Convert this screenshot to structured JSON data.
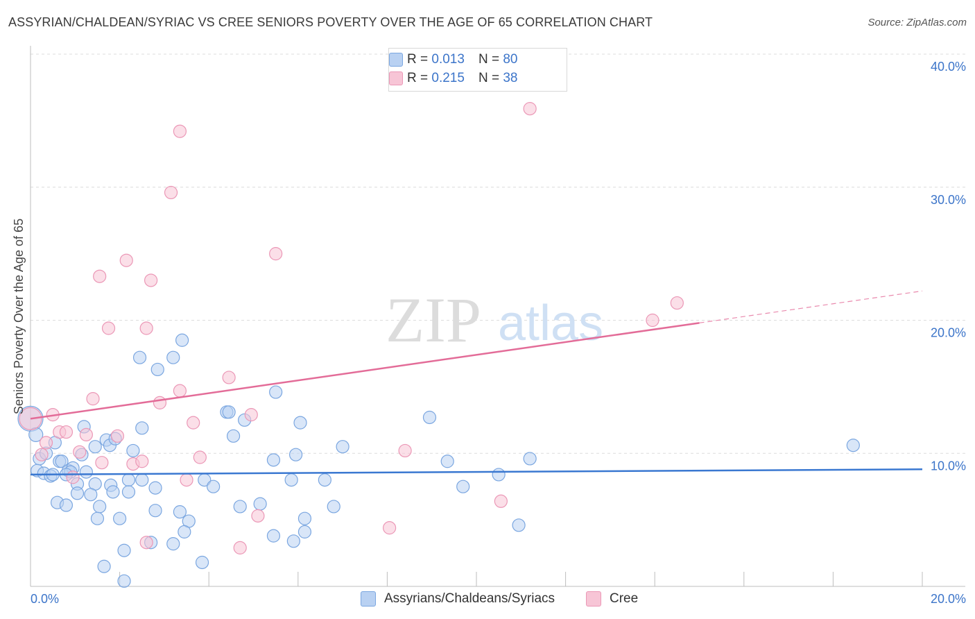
{
  "title": "ASSYRIAN/CHALDEAN/SYRIAC VS CREE SENIORS POVERTY OVER THE AGE OF 65 CORRELATION CHART",
  "source": "Source: ZipAtlas.com",
  "watermark": {
    "zip": "ZIP",
    "atlas": "atlas"
  },
  "colors": {
    "blue": "#3a78d1",
    "blue_fill": "#b9d1f2",
    "blue_stroke": "#7aa6e0",
    "pink": "#e36c98",
    "pink_fill": "#f7c5d6",
    "pink_stroke": "#eb97b6",
    "axis_label": "#3b74c9",
    "grid": "#dcdcdc"
  },
  "legend_top": {
    "rows": [
      {
        "r_label": "R = ",
        "r_value": "0.013",
        "n_label": "N = ",
        "n_value": "80",
        "color": "blue"
      },
      {
        "r_label": "R = ",
        "r_value": "0.215",
        "n_label": "N = ",
        "n_value": "38",
        "color": "pink"
      }
    ]
  },
  "bottom_legend": [
    {
      "label": "Assyrians/Chaldeans/Syriacs",
      "color": "blue"
    },
    {
      "label": "Cree",
      "color": "pink"
    }
  ],
  "chart_data": {
    "type": "scatter",
    "title": "ASSYRIAN/CHALDEAN/SYRIAC VS CREE SENIORS POVERTY OVER THE AGE OF 65 CORRELATION CHART",
    "xlabel": "",
    "ylabel": "Seniors Poverty Over the Age of 65",
    "xlim": [
      0,
      20
    ],
    "ylim": [
      0,
      40
    ],
    "x_tick_labels": [
      "0.0%",
      "20.0%"
    ],
    "y_ticks": [
      10,
      20,
      30,
      40
    ],
    "y_tick_labels": [
      "10.0%",
      "20.0%",
      "30.0%",
      "40.0%"
    ],
    "grid": true,
    "legend_position": "top-center",
    "series": [
      {
        "name": "Assyrians/Chaldeans/Syriacs",
        "color": "blue",
        "trend": {
          "x": [
            0,
            20
          ],
          "y": [
            8.4,
            8.8
          ],
          "dashed_from": null
        },
        "points": [
          [
            0.0,
            12.6,
            18
          ],
          [
            0.12,
            11.4,
            10
          ],
          [
            0.2,
            9.6,
            9
          ],
          [
            0.35,
            10.0,
            9
          ],
          [
            0.55,
            10.8,
            9
          ],
          [
            0.15,
            8.7,
            9
          ],
          [
            0.3,
            8.5,
            9
          ],
          [
            0.45,
            8.3,
            9
          ],
          [
            0.5,
            8.4,
            9
          ],
          [
            0.65,
            9.4,
            9
          ],
          [
            0.7,
            9.4,
            9
          ],
          [
            0.85,
            8.7,
            9
          ],
          [
            0.95,
            8.9,
            9
          ],
          [
            0.9,
            8.6,
            9
          ],
          [
            1.25,
            8.6,
            9
          ],
          [
            1.15,
            9.9,
            9
          ],
          [
            1.2,
            12.0,
            9
          ],
          [
            1.45,
            10.5,
            9
          ],
          [
            1.7,
            11.0,
            9
          ],
          [
            1.78,
            10.6,
            9
          ],
          [
            1.9,
            11.1,
            9
          ],
          [
            2.3,
            10.2,
            9
          ],
          [
            2.5,
            11.9,
            9
          ],
          [
            2.45,
            17.2,
            9
          ],
          [
            2.85,
            16.3,
            9
          ],
          [
            3.2,
            17.2,
            9
          ],
          [
            3.4,
            18.5,
            9
          ],
          [
            1.45,
            7.7,
            9
          ],
          [
            1.05,
            7.7,
            9
          ],
          [
            0.6,
            6.3,
            9
          ],
          [
            0.8,
            6.1,
            9
          ],
          [
            1.05,
            7.0,
            9
          ],
          [
            1.35,
            6.9,
            9
          ],
          [
            1.55,
            6.0,
            9
          ],
          [
            1.8,
            7.6,
            9
          ],
          [
            1.85,
            7.1,
            9
          ],
          [
            2.2,
            8.0,
            9
          ],
          [
            2.2,
            7.1,
            9
          ],
          [
            2.5,
            8.0,
            9
          ],
          [
            2.8,
            7.4,
            9
          ],
          [
            1.5,
            5.1,
            9
          ],
          [
            2.0,
            5.1,
            9
          ],
          [
            2.8,
            5.7,
            9
          ],
          [
            3.35,
            5.6,
            9
          ],
          [
            3.55,
            4.9,
            9
          ],
          [
            3.45,
            4.1,
            9
          ],
          [
            2.7,
            3.3,
            9
          ],
          [
            3.2,
            3.2,
            9
          ],
          [
            2.1,
            2.7,
            9
          ],
          [
            1.65,
            1.5,
            9
          ],
          [
            2.1,
            0.4,
            9
          ],
          [
            3.85,
            1.8,
            9
          ],
          [
            3.9,
            8.0,
            9
          ],
          [
            4.1,
            7.5,
            9
          ],
          [
            4.4,
            13.1,
            9
          ],
          [
            4.45,
            13.1,
            9
          ],
          [
            4.55,
            11.3,
            9
          ],
          [
            4.7,
            6.0,
            9
          ],
          [
            4.8,
            12.5,
            9
          ],
          [
            5.15,
            6.2,
            9
          ],
          [
            5.45,
            9.5,
            9
          ],
          [
            5.5,
            14.6,
            9
          ],
          [
            5.85,
            8.0,
            9
          ],
          [
            5.95,
            9.9,
            9
          ],
          [
            6.05,
            12.3,
            9
          ],
          [
            6.15,
            5.1,
            9
          ],
          [
            6.15,
            4.1,
            9
          ],
          [
            5.45,
            3.8,
            9
          ],
          [
            5.9,
            3.4,
            9
          ],
          [
            6.6,
            8.0,
            9
          ],
          [
            6.8,
            6.0,
            9
          ],
          [
            7.0,
            10.5,
            9
          ],
          [
            8.95,
            12.7,
            9
          ],
          [
            9.35,
            9.4,
            9
          ],
          [
            9.7,
            7.5,
            9
          ],
          [
            10.5,
            8.4,
            9
          ],
          [
            10.95,
            4.6,
            9
          ],
          [
            11.2,
            9.6,
            9
          ],
          [
            18.45,
            10.6,
            9
          ],
          [
            0.8,
            8.4,
            9
          ]
        ]
      },
      {
        "name": "Cree",
        "color": "pink",
        "trend": {
          "x": [
            0,
            20
          ],
          "y": [
            12.6,
            22.2
          ],
          "dashed_from": 15.0
        },
        "points": [
          [
            0.0,
            12.6,
            16
          ],
          [
            0.25,
            9.9,
            9
          ],
          [
            0.35,
            10.8,
            9
          ],
          [
            0.5,
            12.9,
            9
          ],
          [
            0.65,
            11.6,
            9
          ],
          [
            0.8,
            11.6,
            9
          ],
          [
            0.95,
            8.2,
            9
          ],
          [
            1.1,
            10.1,
            9
          ],
          [
            1.25,
            11.4,
            9
          ],
          [
            1.4,
            14.1,
            9
          ],
          [
            1.55,
            23.3,
            9
          ],
          [
            1.6,
            9.3,
            9
          ],
          [
            1.75,
            19.4,
            9
          ],
          [
            1.95,
            11.3,
            9
          ],
          [
            2.15,
            24.5,
            9
          ],
          [
            2.3,
            9.2,
            9
          ],
          [
            2.5,
            9.4,
            9
          ],
          [
            2.6,
            19.4,
            9
          ],
          [
            2.7,
            23.0,
            9
          ],
          [
            2.9,
            13.8,
            9
          ],
          [
            3.15,
            29.6,
            9
          ],
          [
            3.35,
            34.2,
            9
          ],
          [
            3.35,
            14.7,
            9
          ],
          [
            3.5,
            8.0,
            9
          ],
          [
            3.65,
            12.3,
            9
          ],
          [
            3.8,
            9.7,
            9
          ],
          [
            4.45,
            15.7,
            9
          ],
          [
            4.7,
            2.9,
            9
          ],
          [
            4.95,
            12.9,
            9
          ],
          [
            5.1,
            5.3,
            9
          ],
          [
            5.5,
            25.0,
            9
          ],
          [
            2.6,
            3.3,
            9
          ],
          [
            8.05,
            4.4,
            9
          ],
          [
            8.4,
            10.2,
            9
          ],
          [
            10.55,
            6.4,
            9
          ],
          [
            11.2,
            35.9,
            9
          ],
          [
            13.95,
            20.0,
            9
          ],
          [
            14.5,
            21.3,
            9
          ]
        ]
      }
    ]
  }
}
